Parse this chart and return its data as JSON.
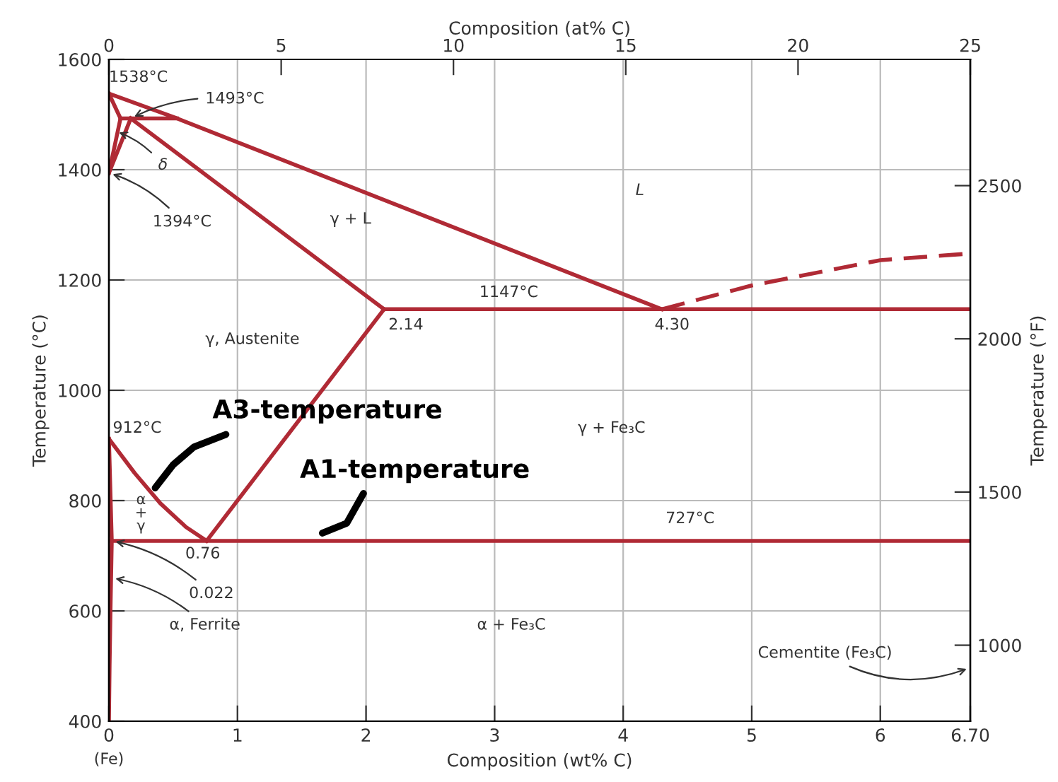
{
  "chart_data": {
    "type": "line",
    "xlabel": "Composition (wt% C)",
    "ylabel": "Temperature (°C)",
    "y2label": "Temperature (°F)",
    "x2label": "Composition (at% C)",
    "xlim": [
      0,
      6.7
    ],
    "xticks": [
      0,
      1,
      2,
      3,
      4,
      5,
      6,
      {
        "value": 6.7,
        "label": "6.70"
      }
    ],
    "ylim": [
      400,
      1600
    ],
    "yticks": [
      400,
      600,
      800,
      1000,
      1200,
      1400,
      1600
    ],
    "y2lim": [
      752,
      2912
    ],
    "y2ticks": [
      1000,
      1500,
      2000,
      2500
    ],
    "x2lim": [
      0,
      25
    ],
    "x2ticks": [
      0,
      5,
      10,
      15,
      20,
      25
    ],
    "grid": true,
    "legend": false,
    "marker": "none",
    "line_style": "solid",
    "series": [
      {
        "color": "#b02a35",
        "x": [
          0,
          0.53,
          4.3
        ],
        "values": [
          1538,
          1493,
          1147
        ]
      },
      {
        "color": "#b02a35",
        "x": [
          4.3,
          5,
          6,
          6.7
        ],
        "values": [
          1147,
          1190,
          1236,
          1248
        ],
        "line_style": "dashed"
      },
      {
        "color": "#b02a35",
        "x": [
          0,
          0.09
        ],
        "values": [
          1538,
          1493
        ]
      },
      {
        "color": "#b02a35",
        "x": [
          0,
          0.09
        ],
        "values": [
          1394,
          1493
        ]
      },
      {
        "color": "#b02a35",
        "x": [
          0,
          0.17
        ],
        "values": [
          1394,
          1493
        ]
      },
      {
        "color": "#b02a35",
        "x": [
          0.09,
          0.53
        ],
        "values": [
          1493,
          1493
        ]
      },
      {
        "color": "#b02a35",
        "x": [
          0.17,
          2.14
        ],
        "values": [
          1493,
          1147
        ]
      },
      {
        "color": "#b02a35",
        "x": [
          2.14,
          6.7
        ],
        "values": [
          1147,
          1147
        ]
      },
      {
        "color": "#b02a35",
        "x": [
          2.14,
          0.76
        ],
        "values": [
          1147,
          727
        ]
      },
      {
        "color": "#b02a35",
        "x": [
          0,
          0.2,
          0.4,
          0.6,
          0.76
        ],
        "values": [
          912,
          850,
          795,
          752,
          727
        ]
      },
      {
        "color": "#b02a35",
        "x": [
          0.022,
          6.7
        ],
        "values": [
          727,
          727
        ]
      },
      {
        "color": "#b02a35",
        "x": [
          0,
          0.022,
          0.012,
          0.005,
          0
        ],
        "values": [
          912,
          727,
          600,
          500,
          400
        ]
      }
    ],
    "annotations": [
      {
        "text": "1538°C",
        "x": 0,
        "y": 1538
      },
      {
        "text": "1493°C",
        "x": 0.17,
        "y": 1493
      },
      {
        "text": "δ",
        "x": 0.05,
        "y": 1470
      },
      {
        "text": "1394°C",
        "x": 0,
        "y": 1394
      },
      "L",
      "γ + L",
      "1147°C",
      {
        "text": "2.14",
        "x": 2.14,
        "y": 1147
      },
      {
        "text": "4.30",
        "x": 4.3,
        "y": 1147
      },
      "γ, Austenite",
      {
        "text": "912°C",
        "x": 0,
        "y": 912
      },
      {
        "text": "A3-temperature",
        "x": 0.36,
        "y": 805
      },
      {
        "text": "A1-temperature",
        "x": 1.66,
        "y": 727
      },
      "γ + Fe₃C",
      "727°C",
      "α\n+\nγ",
      {
        "text": "0.76",
        "x": 0.76,
        "y": 727
      },
      {
        "text": "0.022",
        "x": 0.022,
        "y": 727
      },
      {
        "text": "α, Ferrite",
        "x": 0.02,
        "y": 660
      },
      "α + Fe₃C",
      "Cementite (Fe₃C)",
      "(Fe)"
    ]
  }
}
